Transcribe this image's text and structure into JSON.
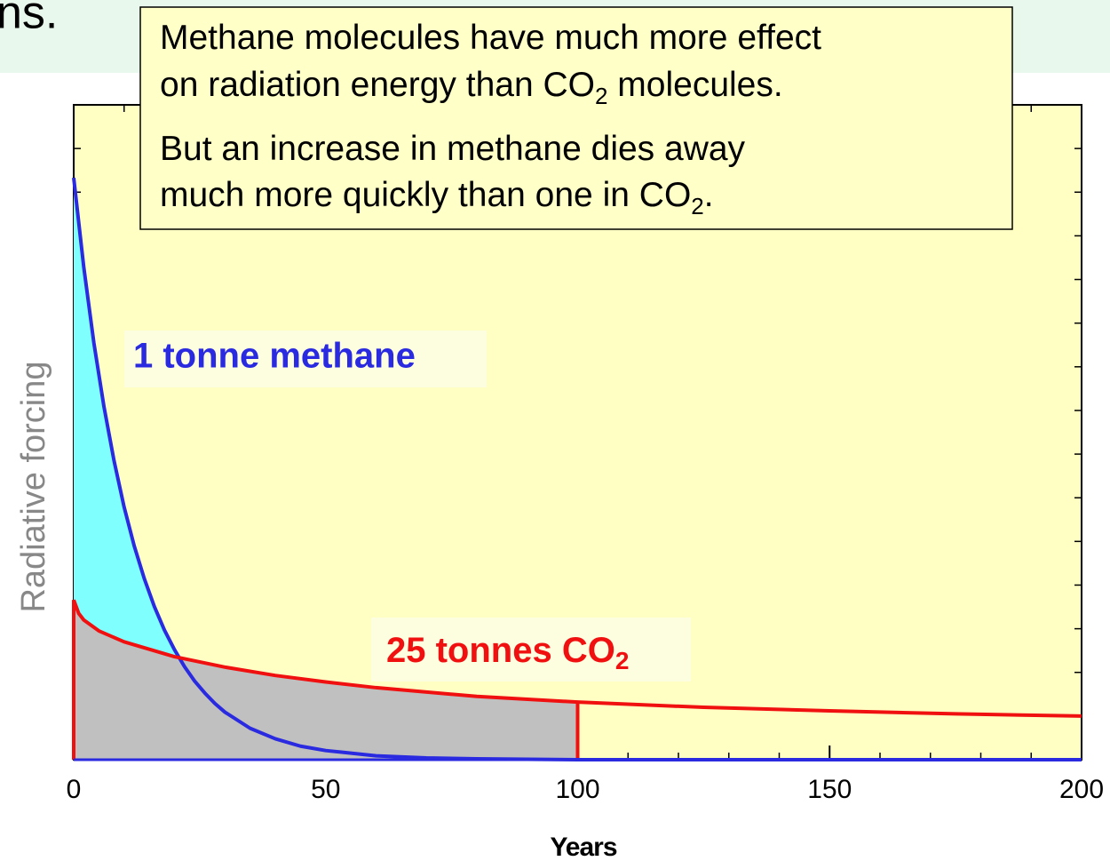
{
  "header": {
    "text": "ns."
  },
  "chart_data": {
    "type": "line",
    "xlabel": "Years",
    "ylabel": "Radiative forcing",
    "xlim": [
      0,
      200
    ],
    "xticks": [
      0,
      50,
      100,
      150,
      200
    ],
    "xminor_step": 10,
    "ylim": [
      0,
      15
    ],
    "ytick_step": 1,
    "shade_until": 100,
    "series": [
      {
        "name": "1 tonne methane",
        "color": "#2a2ae0",
        "fill": "#80ffff",
        "x": [
          0,
          2,
          4,
          6,
          8,
          10,
          12,
          14,
          16,
          18,
          20,
          22,
          24,
          26,
          28,
          30,
          35,
          40,
          45,
          50,
          60,
          70,
          80,
          90,
          100,
          150,
          200
        ],
        "values": [
          13.33,
          11.28,
          9.55,
          8.09,
          6.85,
          5.79,
          4.9,
          4.15,
          3.51,
          2.97,
          2.52,
          2.13,
          1.8,
          1.53,
          1.29,
          1.09,
          0.72,
          0.48,
          0.31,
          0.21,
          0.09,
          0.04,
          0.02,
          0.01,
          0,
          0,
          0
        ]
      },
      {
        "name": "25 tonnes CO",
        "name_subscript": "2",
        "color": "#f01010",
        "fill": "#c0c0c0",
        "x": [
          0,
          1,
          2,
          5,
          10,
          20,
          30,
          40,
          50,
          60,
          80,
          100,
          125,
          150,
          175,
          200
        ],
        "values": [
          3.66,
          3.35,
          3.2,
          2.95,
          2.7,
          2.36,
          2.12,
          1.93,
          1.78,
          1.65,
          1.45,
          1.32,
          1.2,
          1.12,
          1.05,
          1.0
        ]
      }
    ],
    "annotation": [
      [
        "Methane molecules have much more effect"
      ],
      [
        "on radiation energy than CO",
        "2",
        " molecules."
      ],
      [
        "But an increase in methane dies away"
      ],
      [
        "much more quickly than one in CO",
        "2",
        "."
      ]
    ]
  }
}
